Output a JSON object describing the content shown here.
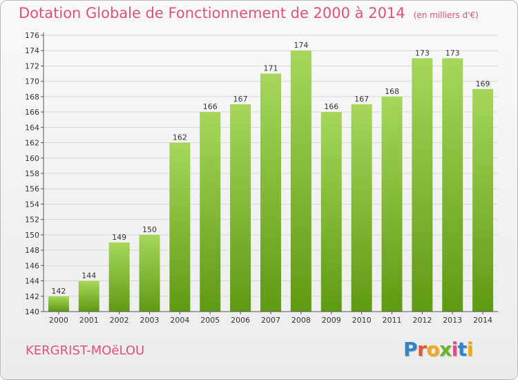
{
  "header": {
    "title": "Dotation Globale de Fonctionnement de 2000 à 2014",
    "unit": "(en milliers d'€)"
  },
  "footer": {
    "commune": "KERGRIST-MOëLOU",
    "logo_letters": [
      "P",
      "r",
      "o",
      "x",
      "i",
      "t",
      "i"
    ]
  },
  "chart_data": {
    "type": "bar",
    "title": "Dotation Globale de Fonctionnement de 2000 à 2014",
    "subtitle": "(en milliers d'€)",
    "xlabel": "",
    "ylabel": "",
    "categories": [
      "2000",
      "2001",
      "2002",
      "2003",
      "2004",
      "2005",
      "2006",
      "2007",
      "2008",
      "2009",
      "2010",
      "2011",
      "2012",
      "2013",
      "2014"
    ],
    "values": [
      142,
      144,
      149,
      150,
      162,
      166,
      167,
      171,
      174,
      166,
      167,
      168,
      173,
      173,
      169
    ],
    "ylim": [
      140,
      176
    ],
    "yticks": [
      140,
      142,
      144,
      146,
      148,
      150,
      152,
      154,
      156,
      158,
      160,
      162,
      164,
      166,
      168,
      170,
      172,
      174,
      176
    ],
    "grid": true,
    "legend": "none",
    "colors": {
      "bar_top": "#a6d75a",
      "bar_bottom": "#5f9a14",
      "grid": "#d9d9d9",
      "axis": "#555555",
      "title": "#e0527a"
    }
  }
}
